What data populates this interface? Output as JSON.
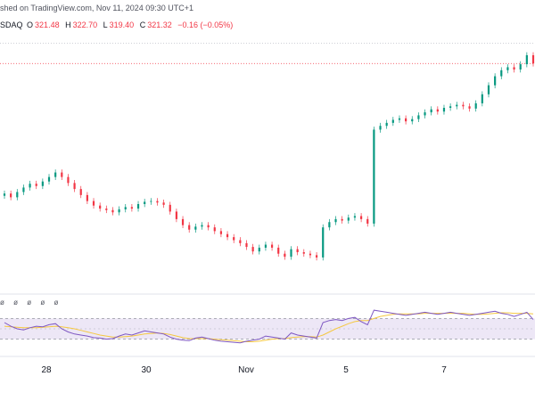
{
  "header": {
    "published": "shed on TradingView.com, Nov 11, 2024 09:30 UTC+1"
  },
  "quote": {
    "exchange": "SDAQ",
    "open_label": "O",
    "open": "321.48",
    "high_label": "H",
    "high": "322.70",
    "low_label": "L",
    "low": "319.40",
    "close_label": "C",
    "close": "321.32",
    "change": "−0.16 (−0.05%)"
  },
  "rsi_values": "ø ø ø ø ø",
  "colors": {
    "up": "#089981",
    "down": "#f23645",
    "rsi": "#7e57c2",
    "rsi_ma": "#f5c842",
    "band": "#ede7f6"
  },
  "chart_data": [
    {
      "type": "candlestick",
      "x_tick_labels": [
        "28",
        "30",
        "Nov",
        "5",
        "7"
      ],
      "price_path": [
        304.0,
        303.5,
        304.2,
        304.8,
        305.3,
        305.0,
        305.6,
        306.2,
        306.8,
        306.2,
        305.4,
        304.6,
        303.8,
        303.0,
        302.4,
        302.0,
        301.8,
        301.5,
        301.9,
        302.2,
        302.0,
        302.6,
        302.9,
        303.0,
        302.8,
        302.5,
        301.6,
        300.6,
        299.8,
        299.2,
        299.6,
        299.8,
        299.5,
        299.0,
        298.6,
        298.2,
        297.8,
        297.4,
        296.9,
        296.3,
        296.8,
        297.2,
        296.8,
        296.0,
        295.6,
        296.6,
        296.2,
        296.0,
        295.8,
        295.5,
        299.5,
        300.2,
        300.6,
        300.4,
        300.8,
        301.0,
        300.6,
        300.0,
        312.5,
        313.0,
        313.4,
        313.8,
        314.0,
        313.6,
        313.9,
        314.4,
        314.8,
        315.2,
        314.9,
        315.4,
        315.6,
        315.8,
        315.6,
        315.3,
        316.0,
        317.2,
        318.4,
        319.6,
        320.4,
        320.8,
        320.5,
        321.2,
        322.4,
        321.3
      ],
      "reference_price": "dotted red line at last price"
    },
    {
      "type": "line",
      "indicator": "RSI",
      "band": [
        30,
        70
      ],
      "rsi_series": [
        62,
        55,
        50,
        48,
        52,
        55,
        54,
        58,
        60,
        50,
        44,
        40,
        38,
        36,
        33,
        32,
        30,
        31,
        36,
        40,
        38,
        42,
        46,
        44,
        42,
        40,
        34,
        30,
        28,
        27,
        32,
        34,
        31,
        28,
        26,
        25,
        24,
        23,
        26,
        28,
        30,
        36,
        34,
        32,
        30,
        42,
        38,
        36,
        34,
        32,
        62,
        66,
        68,
        66,
        70,
        72,
        64,
        58,
        86,
        84,
        82,
        80,
        78,
        76,
        78,
        80,
        82,
        80,
        78,
        80,
        82,
        80,
        78,
        76,
        78,
        80,
        82,
        84,
        80,
        78,
        74,
        78,
        82,
        68
      ],
      "ma_series": [
        55,
        54,
        53,
        52,
        52,
        52,
        53,
        54,
        55,
        54,
        52,
        50,
        47,
        44,
        41,
        38,
        36,
        34,
        34,
        35,
        36,
        38,
        40,
        41,
        42,
        41,
        39,
        36,
        33,
        31,
        31,
        31,
        31,
        30,
        29,
        28,
        27,
        26,
        25,
        25,
        26,
        28,
        30,
        31,
        31,
        33,
        34,
        35,
        35,
        34,
        38,
        44,
        50,
        55,
        60,
        64,
        66,
        66,
        70,
        74,
        76,
        78,
        79,
        79,
        79,
        79,
        80,
        80,
        80,
        80,
        80,
        80,
        80,
        79,
        78,
        78,
        79,
        80,
        81,
        81,
        80,
        80,
        80,
        79
      ]
    }
  ]
}
